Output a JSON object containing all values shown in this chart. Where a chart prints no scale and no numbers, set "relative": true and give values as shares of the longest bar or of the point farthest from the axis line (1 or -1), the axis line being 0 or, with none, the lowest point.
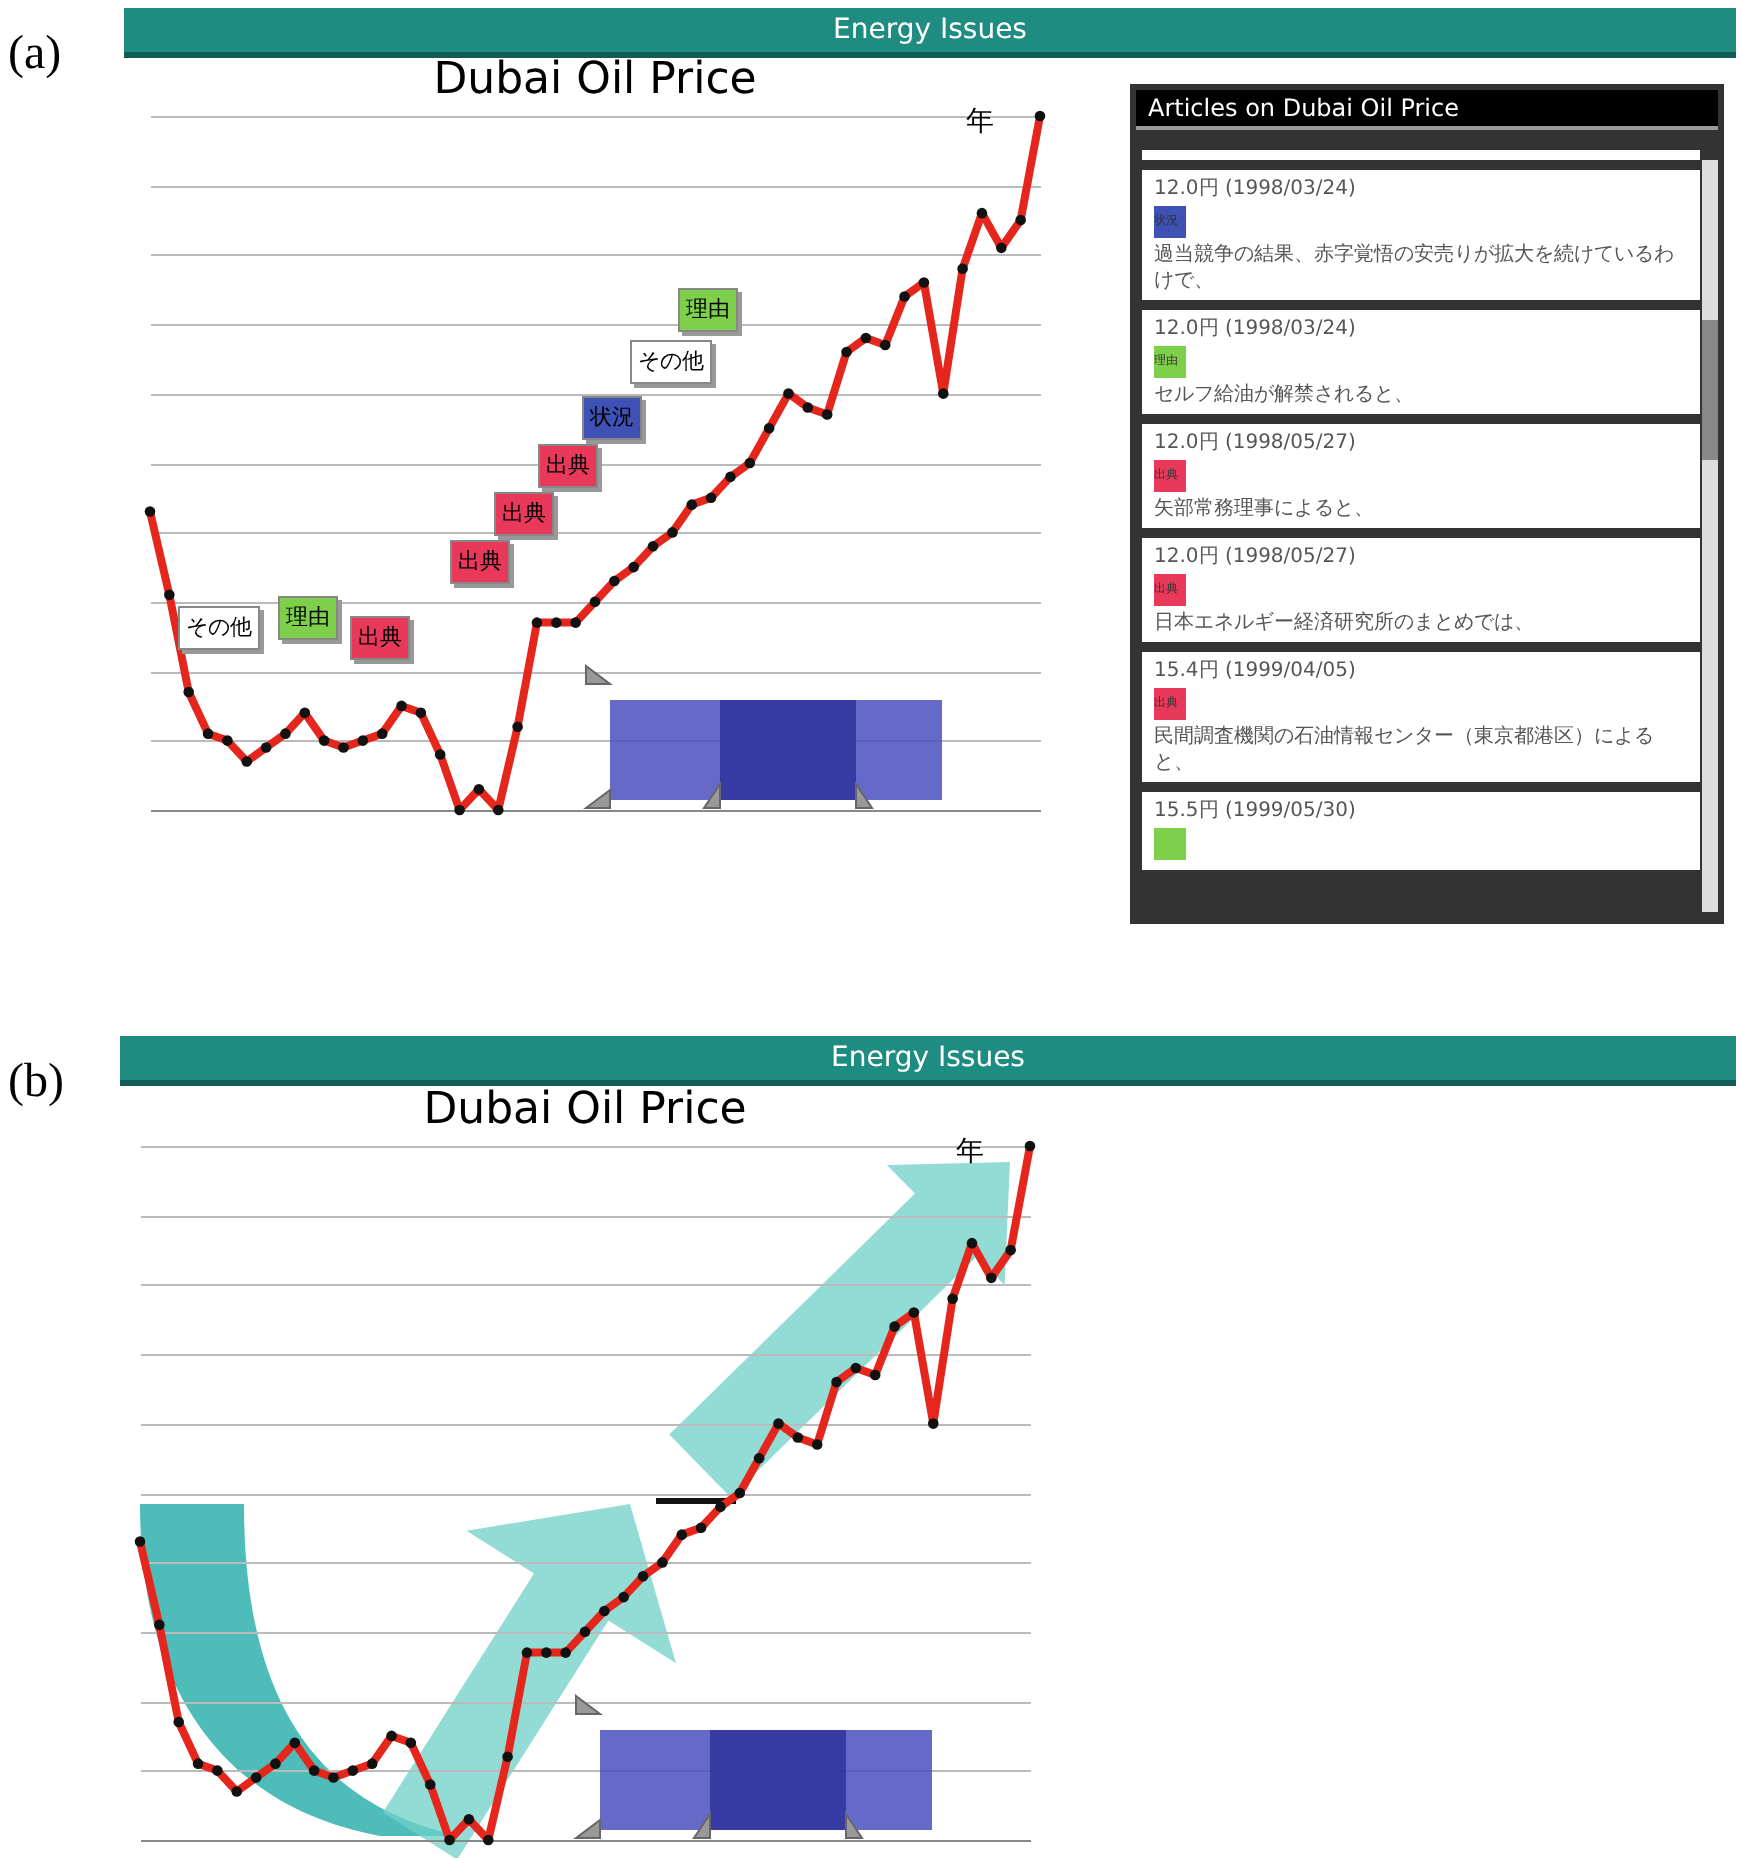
{
  "chart_data": [
    {
      "type": "line",
      "title": "Dubai Oil Price",
      "annotations": [
        "Energy Issues",
        "(a)",
        "年",
        "その他",
        "理由",
        "出典",
        "出典",
        "出典",
        "出典",
        "状況",
        "その他",
        "理由"
      ],
      "relative": true,
      "grid": "y",
      "marker": "circle",
      "line_style": "solid",
      "categories": [
        null,
        null,
        null,
        null,
        null,
        null,
        null,
        null,
        null,
        null,
        null,
        null,
        null,
        null,
        null,
        null,
        null,
        null,
        null,
        null,
        null,
        null,
        null,
        null,
        null,
        null,
        null,
        null,
        null,
        null,
        null,
        null,
        null,
        null,
        null,
        null,
        null,
        null,
        null,
        null,
        null,
        null,
        null,
        null,
        null,
        null,
        null
      ],
      "series": [
        {
          "color": "#e4261c",
          "values": [
            0.43,
            0.31,
            0.17,
            0.11,
            0.1,
            0.07,
            0.09,
            0.11,
            0.14,
            0.1,
            0.09,
            0.1,
            0.11,
            0.15,
            0.14,
            0.08,
            0.0,
            0.03,
            0.0,
            0.12,
            0.27,
            0.27,
            0.27,
            0.3,
            0.33,
            0.35,
            0.38,
            0.4,
            0.44,
            0.45,
            0.48,
            0.5,
            0.55,
            0.6,
            0.58,
            0.57,
            0.66,
            0.68,
            0.67,
            0.74,
            0.76,
            0.6,
            0.78,
            0.86,
            0.81,
            0.85,
            1
          ]
        }
      ]
    },
    {
      "type": "other",
      "title": "Articles on Dubai Oil Price",
      "annotations": [
        "12.0円 (1998/03/24)",
        "状況",
        "過当競争の結果、赤字覚悟の安売りが拡大を続けているわけで、",
        "12.0円 (1998/03/24)",
        "理由",
        "セルフ給油が解禁されると、",
        "12.0円 (1998/05/27)",
        "出典",
        "矢部常務理事によると、",
        "12.0円 (1998/05/27)",
        "出典",
        "日本エネルギー経済研究所のまとめでは、",
        "15.4円 (1999/04/05)",
        "出典",
        "民間調査機関の石油情報センター（東京都港区）によると、",
        "15.5円 (1999/05/30)"
      ],
      "colors": [
        "#3f51b5",
        "#7ed04b",
        "#e8395a",
        "#e8395a",
        "#e8395a",
        "#7ed04b"
      ]
    },
    {
      "type": "line",
      "title": "Dubai Oil Price",
      "annotations": [
        "Energy Issues",
        "(b)",
        "年"
      ],
      "relative": true,
      "grid": "y",
      "marker": "circle",
      "line_style": "solid",
      "categories": [
        null,
        null,
        null,
        null,
        null,
        null,
        null,
        null,
        null,
        null,
        null,
        null,
        null,
        null,
        null,
        null,
        null,
        null,
        null,
        null,
        null,
        null,
        null,
        null,
        null,
        null,
        null,
        null,
        null,
        null,
        null,
        null,
        null,
        null,
        null,
        null,
        null,
        null,
        null,
        null,
        null,
        null,
        null,
        null,
        null,
        null,
        null
      ],
      "series": [
        {
          "color": "#e4261c",
          "values": [
            0.43,
            0.31,
            0.17,
            0.11,
            0.1,
            0.07,
            0.09,
            0.11,
            0.14,
            0.1,
            0.09,
            0.1,
            0.11,
            0.15,
            0.14,
            0.08,
            0.0,
            0.03,
            0.0,
            0.12,
            0.27,
            0.27,
            0.27,
            0.3,
            0.33,
            0.35,
            0.38,
            0.4,
            0.44,
            0.45,
            0.48,
            0.5,
            0.55,
            0.6,
            0.58,
            0.57,
            0.66,
            0.68,
            0.67,
            0.74,
            0.76,
            0.6,
            0.78,
            0.86,
            0.81,
            0.85,
            1
          ]
        }
      ]
    }
  ]
}
